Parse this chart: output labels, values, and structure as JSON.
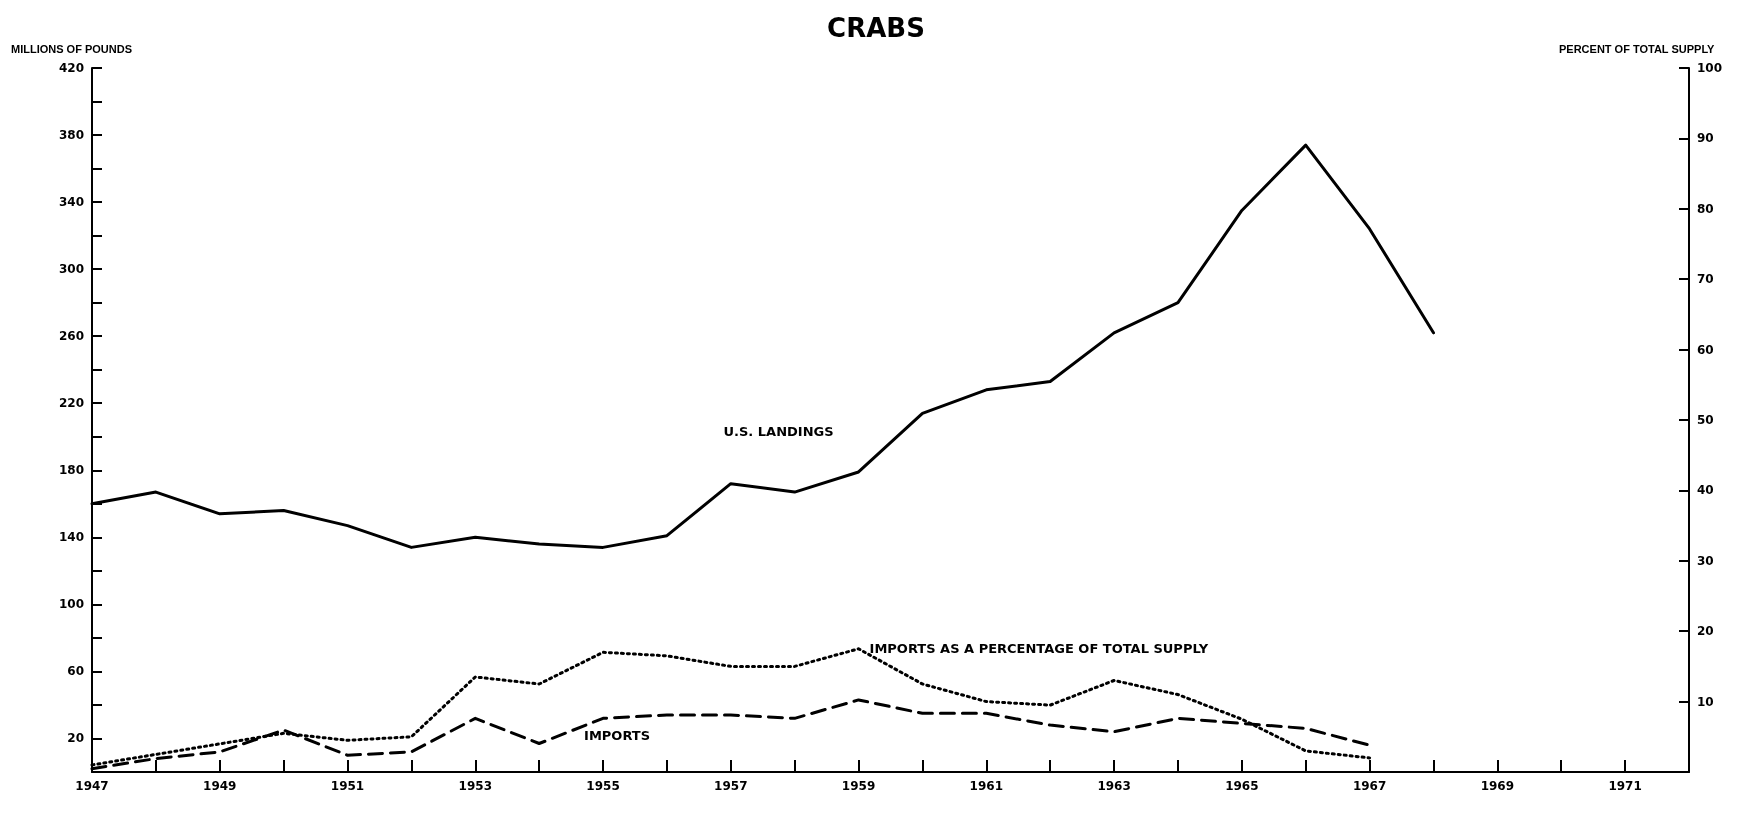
{
  "chart_data": {
    "type": "line",
    "title": "CRABS",
    "ylabel": "MILLIONS OF POUNDS",
    "y2label": "PERCENT OF TOTAL SUPPLY",
    "x": [
      1947,
      1948,
      1949,
      1950,
      1951,
      1952,
      1953,
      1954,
      1955,
      1956,
      1957,
      1958,
      1959,
      1960,
      1961,
      1962,
      1963,
      1964,
      1965,
      1966,
      1967,
      1968
    ],
    "series": [
      {
        "name": "U.S. LANDINGS",
        "color": "#000000",
        "line_style": "solid",
        "values": [
          160,
          167,
          154,
          156,
          147,
          134,
          140,
          136,
          134,
          141,
          172,
          167,
          179,
          214,
          228,
          233,
          262,
          280,
          335,
          374,
          324,
          262
        ]
      },
      {
        "name": "IMPORTS AS A PERCENTAGE OF TOTAL SUPPLY",
        "color": "#000000",
        "line_style": "dotted",
        "axis": "y2",
        "values": [
          1,
          2.5,
          4,
          5.5,
          4.5,
          5,
          13.5,
          12.5,
          17,
          16.5,
          15,
          15,
          17.5,
          12.5,
          10,
          9.5,
          13,
          11,
          7.5,
          3,
          2,
          null
        ]
      },
      {
        "name": "IMPORTS",
        "color": "#000000",
        "line_style": "dashed",
        "values": [
          2,
          8,
          12,
          25,
          10,
          12,
          32,
          17,
          32,
          34,
          34,
          32,
          43,
          35,
          35,
          28,
          24,
          32,
          29,
          26,
          16,
          null
        ]
      }
    ],
    "xlim": [
      1947,
      1972
    ],
    "xticks": [
      1947,
      {
        "value": 1948,
        "label": null
      },
      1949,
      {
        "value": 1950,
        "label": null
      },
      1951,
      {
        "value": 1952,
        "label": null
      },
      1953,
      {
        "value": 1954,
        "label": null
      },
      1955,
      {
        "value": 1956,
        "label": null
      },
      1957,
      {
        "value": 1958,
        "label": null
      },
      1959,
      {
        "value": 1960,
        "label": null
      },
      1961,
      {
        "value": 1962,
        "label": null
      },
      1963,
      {
        "value": 1964,
        "label": null
      },
      1965,
      {
        "value": 1966,
        "label": null
      },
      1967,
      {
        "value": 1968,
        "label": null
      },
      1969,
      {
        "value": 1970,
        "label": null
      },
      1971
    ],
    "ylim": [
      0,
      420
    ],
    "yticks": [
      20,
      {
        "value": 40,
        "label": null
      },
      60,
      {
        "value": 80,
        "label": null
      },
      100,
      {
        "value": 120,
        "label": null
      },
      140,
      {
        "value": 160,
        "label": null
      },
      180,
      {
        "value": 200,
        "label": null
      },
      220,
      {
        "value": 240,
        "label": null
      },
      260,
      {
        "value": 280,
        "label": null
      },
      300,
      {
        "value": 320,
        "label": null
      },
      340,
      {
        "value": 360,
        "label": null
      },
      380,
      {
        "value": 400,
        "label": null
      },
      420
    ],
    "y2lim": [
      0,
      100
    ],
    "y2ticks": [
      10,
      20,
      30,
      40,
      50,
      60,
      70,
      80,
      90,
      100
    ],
    "grid": false,
    "legend": false,
    "marker": "none"
  }
}
